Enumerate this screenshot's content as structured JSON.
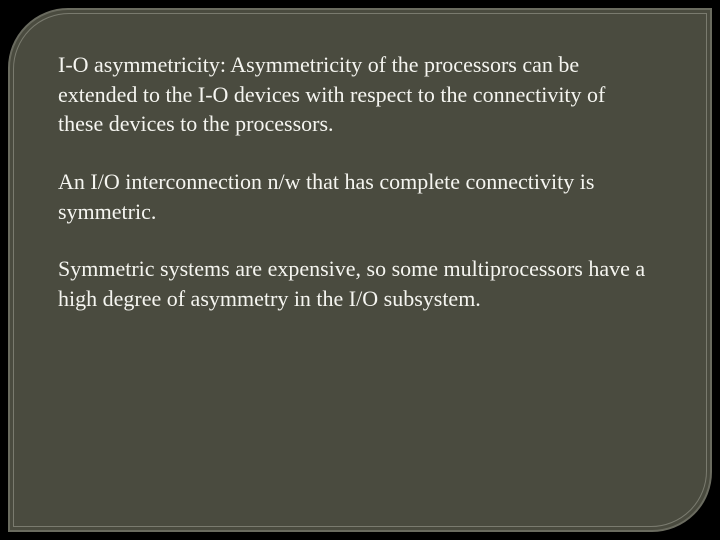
{
  "slide": {
    "background_color": "#000000",
    "panel_color": "#4a4b3f",
    "border_color": "#6a6b5f",
    "inner_border_color": "#7a7b6f",
    "text_color": "#f5f5f0",
    "font_family": "serif",
    "font_size_pt": 22,
    "corner_radius_tl": 60,
    "corner_radius_br": 60,
    "paragraphs": [
      "I-O asymmetricity: Asymmetricity of the processors can be extended to the I-O devices with respect to the connectivity of these devices to the processors.",
      "An I/O interconnection n/w that has complete connectivity is symmetric.",
      "Symmetric systems are expensive, so some multiprocessors have a high degree of asymmetry in the I/O subsystem."
    ]
  }
}
